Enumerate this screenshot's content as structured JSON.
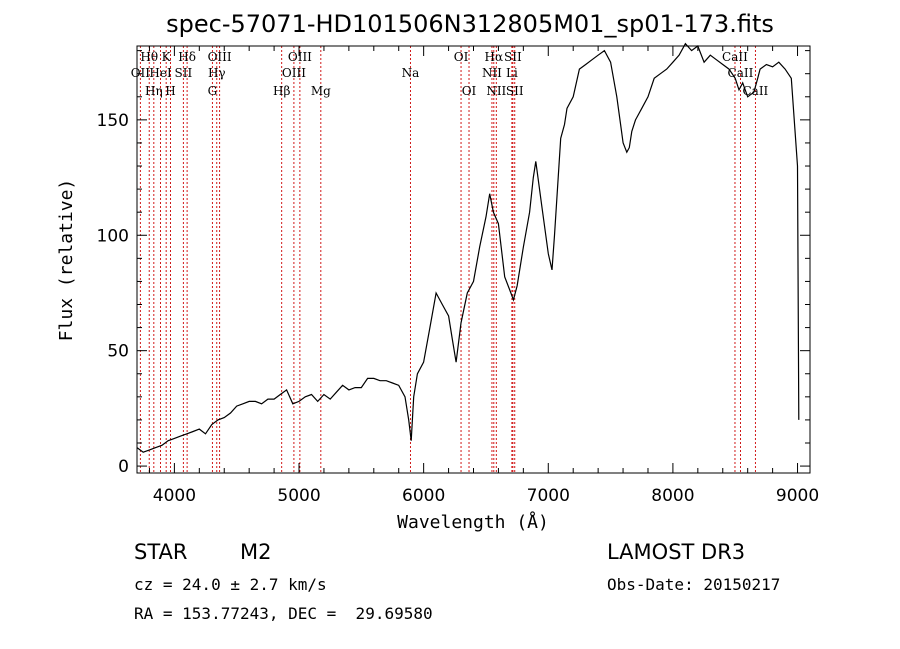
{
  "chart_data": {
    "type": "line",
    "title": "spec-57071-HD101506N312805M01_sp01-173.fits",
    "xlabel": "Wavelength (Å)",
    "ylabel": "Flux (relative)",
    "xlim": [
      3700,
      9100
    ],
    "ylim": [
      -3,
      182
    ],
    "xticks": [
      4000,
      5000,
      6000,
      7000,
      8000,
      9000
    ],
    "yticks": [
      0,
      50,
      100,
      150
    ],
    "grid": false,
    "series": [
      {
        "name": "flux",
        "x": [
          3700,
          3750,
          3800,
          3850,
          3900,
          3950,
          4000,
          4050,
          4100,
          4150,
          4200,
          4250,
          4300,
          4350,
          4400,
          4450,
          4500,
          4550,
          4600,
          4650,
          4700,
          4750,
          4800,
          4850,
          4900,
          4950,
          5000,
          5050,
          5100,
          5150,
          5200,
          5250,
          5300,
          5350,
          5400,
          5450,
          5500,
          5550,
          5600,
          5650,
          5700,
          5750,
          5800,
          5850,
          5880,
          5900,
          5920,
          5950,
          6000,
          6050,
          6100,
          6150,
          6200,
          6230,
          6260,
          6300,
          6350,
          6400,
          6450,
          6500,
          6530,
          6560,
          6600,
          6650,
          6700,
          6720,
          6750,
          6800,
          6850,
          6880,
          6900,
          6950,
          7000,
          7030,
          7050,
          7080,
          7100,
          7130,
          7150,
          7200,
          7250,
          7300,
          7350,
          7400,
          7450,
          7500,
          7550,
          7580,
          7600,
          7630,
          7650,
          7670,
          7700,
          7750,
          7800,
          7850,
          7900,
          7950,
          8000,
          8050,
          8100,
          8150,
          8200,
          8250,
          8300,
          8350,
          8400,
          8450,
          8500,
          8530,
          8560,
          8600,
          8650,
          8680,
          8700,
          8750,
          8800,
          8850,
          8900,
          8950,
          9000,
          9010
        ],
        "y": [
          8,
          6,
          7,
          8,
          9,
          11,
          12,
          13,
          14,
          15,
          16,
          14,
          18,
          20,
          21,
          23,
          26,
          27,
          28,
          28,
          27,
          29,
          29,
          31,
          33,
          27,
          28,
          30,
          31,
          28,
          31,
          29,
          32,
          35,
          33,
          34,
          34,
          38,
          38,
          37,
          37,
          36,
          35,
          30,
          20,
          11,
          30,
          40,
          45,
          60,
          75,
          70,
          65,
          55,
          45,
          62,
          75,
          80,
          95,
          108,
          118,
          110,
          105,
          82,
          75,
          72,
          78,
          95,
          110,
          125,
          132,
          112,
          92,
          85,
          100,
          125,
          142,
          148,
          155,
          160,
          172,
          174,
          176,
          178,
          180,
          175,
          160,
          148,
          140,
          136,
          138,
          145,
          150,
          155,
          160,
          168,
          170,
          172,
          175,
          178,
          183,
          180,
          182,
          175,
          178,
          176,
          174,
          172,
          168,
          163,
          166,
          160,
          162,
          168,
          172,
          174,
          173,
          175,
          172,
          168,
          130,
          20
        ]
      }
    ],
    "emission_lines": [
      {
        "label": "OII",
        "x": 3727,
        "row": 2
      },
      {
        "label": "Hθ",
        "x": 3798,
        "row": 1
      },
      {
        "label": "Hη",
        "x": 3835,
        "row": 3
      },
      {
        "label": "HeI",
        "x": 3889,
        "row": 2
      },
      {
        "label": "K",
        "x": 3934,
        "row": 1
      },
      {
        "label": "H",
        "x": 3969,
        "row": 3
      },
      {
        "label": "SII",
        "x": 4072,
        "row": 2
      },
      {
        "label": "Hδ",
        "x": 4102,
        "row": 1
      },
      {
        "label": "G",
        "x": 4305,
        "row": 3
      },
      {
        "label": "Hγ",
        "x": 4340,
        "row": 2
      },
      {
        "label": "OIII",
        "x": 4363,
        "row": 1
      },
      {
        "label": "Hβ",
        "x": 4861,
        "row": 3
      },
      {
        "label": "OIII",
        "x": 4959,
        "row": 2
      },
      {
        "label": "OIII",
        "x": 5007,
        "row": 1
      },
      {
        "label": "Mg",
        "x": 5175,
        "row": 3
      },
      {
        "label": "Na",
        "x": 5894,
        "row": 2
      },
      {
        "label": "OI",
        "x": 6300,
        "row": 1
      },
      {
        "label": "OI",
        "x": 6364,
        "row": 3
      },
      {
        "label": "NII",
        "x": 6548,
        "row": 2
      },
      {
        "label": "Hα",
        "x": 6563,
        "row": 1
      },
      {
        "label": "NII",
        "x": 6583,
        "row": 3
      },
      {
        "label": "SII",
        "x": 6716,
        "row": 1
      },
      {
        "label": "Li",
        "x": 6708,
        "row": 2
      },
      {
        "label": "SII",
        "x": 6731,
        "row": 3
      },
      {
        "label": "CaII",
        "x": 8498,
        "row": 1
      },
      {
        "label": "CaII",
        "x": 8542,
        "row": 2
      },
      {
        "label": "CaII",
        "x": 8662,
        "row": 3
      }
    ]
  },
  "info": {
    "class": "STAR",
    "subclass": "M2",
    "survey": "LAMOST DR3",
    "cz": "cz = 24.0 ± 2.7 km/s",
    "obs_date": "Obs-Date: 20150217",
    "coords": "RA = 153.77243, DEC =  29.69580"
  },
  "colors": {
    "line": "#000000",
    "marker": "#cc0000"
  }
}
